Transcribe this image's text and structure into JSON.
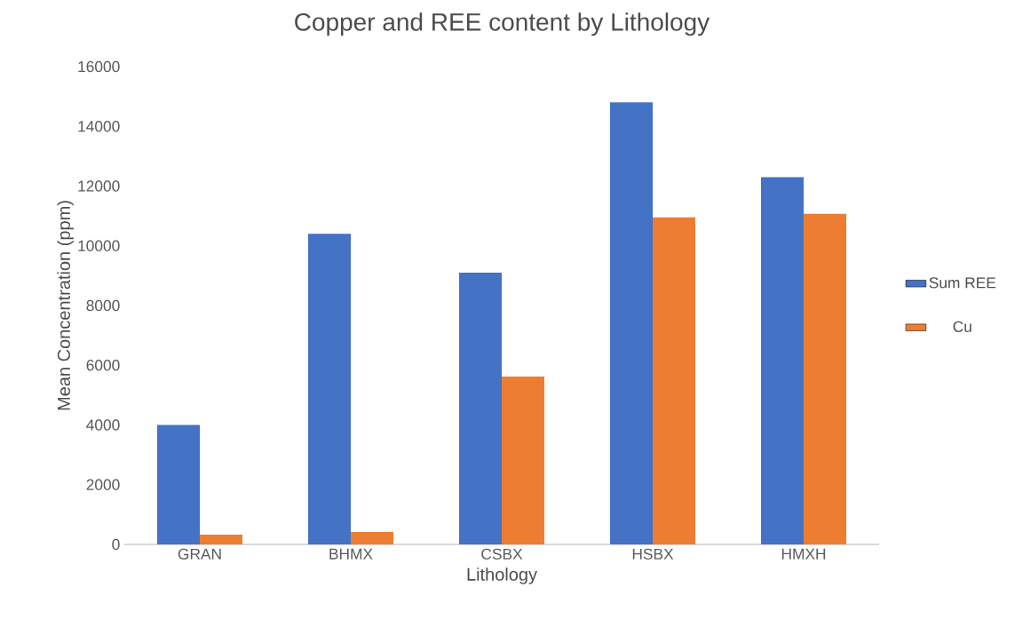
{
  "chart_data": {
    "type": "bar",
    "title": "Copper and REE content by Lithology",
    "xlabel": "Lithology",
    "ylabel": "Mean Concentration (ppm)",
    "categories": [
      "GRAN",
      "BHMX",
      "CSBX",
      "HSBX",
      "HMXH"
    ],
    "series": [
      {
        "name": "Sum REE",
        "color": "#4472c4",
        "values": [
          4000,
          10400,
          9100,
          14800,
          12300
        ]
      },
      {
        "name": "Cu",
        "color": "#ed7d31",
        "values": [
          330,
          420,
          5620,
          10950,
          11070
        ]
      }
    ],
    "ylim": [
      0,
      16000
    ],
    "yticks": [
      0,
      2000,
      4000,
      6000,
      8000,
      10000,
      12000,
      14000,
      16000
    ],
    "legend": "right"
  }
}
